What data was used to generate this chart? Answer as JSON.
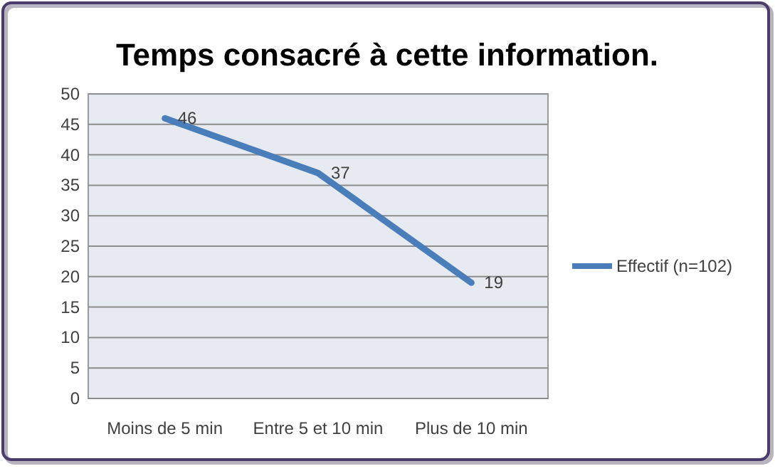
{
  "chart_data": {
    "type": "line",
    "title": "Temps consacré à cette information.",
    "categories": [
      "Moins de 5 min",
      "Entre 5 et 10 min",
      "Plus de 10 min"
    ],
    "series": [
      {
        "name": "Effectif (n=102)",
        "color": "#4a7ebb",
        "values": [
          46,
          37,
          19
        ]
      }
    ],
    "ylim": [
      0,
      50
    ],
    "yticks": [
      0,
      5,
      10,
      15,
      20,
      25,
      30,
      35,
      40,
      45,
      50
    ],
    "grid": "y",
    "legend": "right",
    "data_labels": true,
    "marker": "none"
  }
}
